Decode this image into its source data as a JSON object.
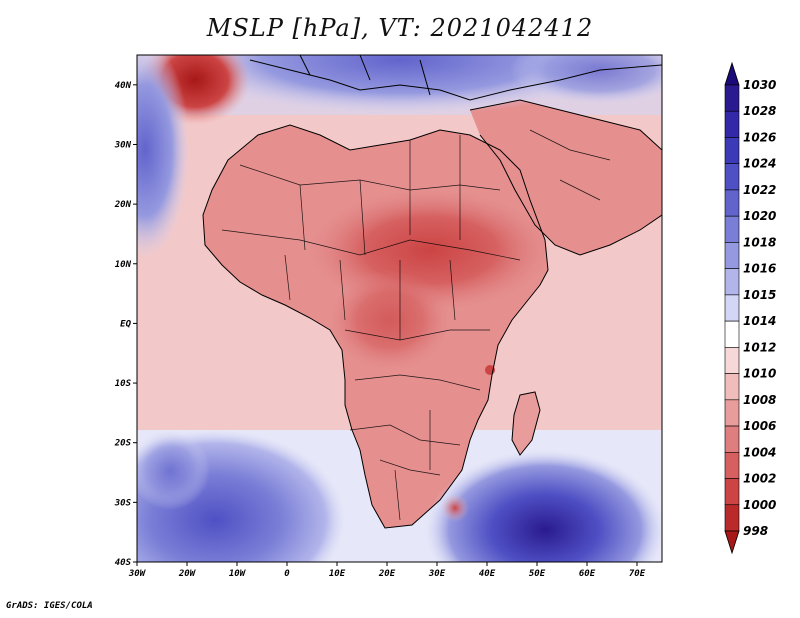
{
  "title": "MSLP [hPa], VT: 2021042412",
  "footer": "GrADS: IGES/COLA",
  "x_ticks": [
    "30W",
    "20W",
    "10W",
    "0",
    "10E",
    "20E",
    "30E",
    "40E",
    "50E",
    "60E",
    "70E"
  ],
  "y_ticks": [
    "40N",
    "30N",
    "20N",
    "10N",
    "EQ",
    "10S",
    "20S",
    "30S",
    "40S"
  ],
  "colorbar": {
    "labels": [
      "1030",
      "1028",
      "1026",
      "1024",
      "1022",
      "1020",
      "1018",
      "1016",
      "1015",
      "1014",
      "1012",
      "1010",
      "1008",
      "1006",
      "1004",
      "1002",
      "1000",
      "998"
    ],
    "colors": [
      "#2a1a8f",
      "#3228a8",
      "#3d3ab8",
      "#4f50c4",
      "#6264cc",
      "#7a7ed6",
      "#9599df",
      "#b2b5ea",
      "#d4d6f5",
      "#ffffff",
      "#f7d8d8",
      "#f1bcbc",
      "#e89c9c",
      "#df7e7e",
      "#d66060",
      "#cc4444",
      "#bb2a2a",
      "#a81818"
    ]
  },
  "map": {
    "ocean_color": "#f3c8c8",
    "land_color": "#e58f8f"
  }
}
